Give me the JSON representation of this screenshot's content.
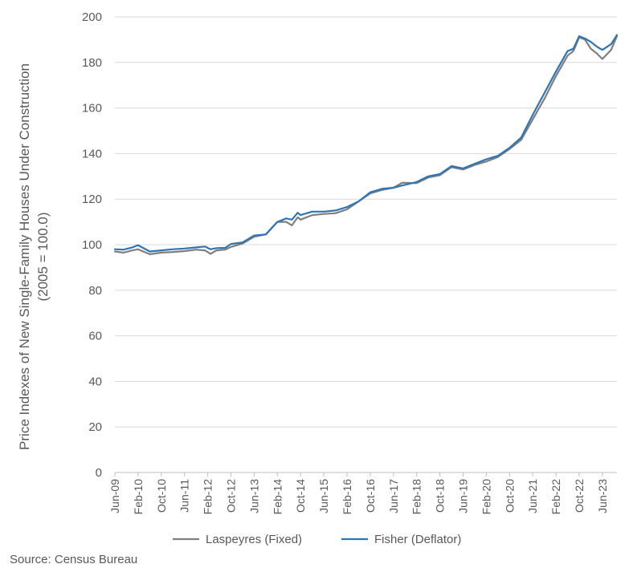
{
  "chart_data": {
    "type": "line",
    "title": "",
    "ylabel_line1": "Price Indexes of New Single-Family Houses Under Construction",
    "ylabel_line2": "(2005 = 100.0)",
    "xlabel": "",
    "ylim": [
      0,
      200
    ],
    "yticks": [
      0,
      20,
      40,
      60,
      80,
      100,
      120,
      140,
      160,
      180,
      200
    ],
    "grid": "horizontal",
    "legend_position": "bottom",
    "x_tick_labels": [
      "Jun-09",
      "Feb-10",
      "Oct-10",
      "Jun-11",
      "Feb-12",
      "Oct-12",
      "Jun-13",
      "Feb-14",
      "Oct-14",
      "Jun-15",
      "Feb-16",
      "Oct-16",
      "Jun-17",
      "Feb-18",
      "Oct-18",
      "Jun-19",
      "Feb-20",
      "Oct-20",
      "Jun-21",
      "Feb-22",
      "Oct-22",
      "Jun-23"
    ],
    "x_start": "Jun-09",
    "x_end": "Nov-23",
    "series": [
      {
        "name": "Laspeyres (Fixed)",
        "color": "#7f7f7f",
        "points": [
          [
            "Jun-09",
            97
          ],
          [
            "Sep-09",
            96.5
          ],
          [
            "Dec-09",
            97.5
          ],
          [
            "Feb-10",
            98
          ],
          [
            "Jun-10",
            95.8
          ],
          [
            "Oct-10",
            96.5
          ],
          [
            "Feb-11",
            96.8
          ],
          [
            "Jun-11",
            97.2
          ],
          [
            "Oct-11",
            97.8
          ],
          [
            "Jan-12",
            97.5
          ],
          [
            "Mar-12",
            96
          ],
          [
            "May-12",
            97.5
          ],
          [
            "Aug-12",
            97.8
          ],
          [
            "Oct-12",
            99
          ],
          [
            "Feb-13",
            100.5
          ],
          [
            "Jun-13",
            103.5
          ],
          [
            "Oct-13",
            104.5
          ],
          [
            "Feb-14",
            110
          ],
          [
            "May-14",
            110
          ],
          [
            "Jul-14",
            108.5
          ],
          [
            "Sep-14",
            112
          ],
          [
            "Oct-14",
            111
          ],
          [
            "Feb-15",
            113
          ],
          [
            "Jun-15",
            113.5
          ],
          [
            "Oct-15",
            113.8
          ],
          [
            "Feb-16",
            115.5
          ],
          [
            "Jun-16",
            119
          ],
          [
            "Oct-16",
            122.5
          ],
          [
            "Feb-17",
            124
          ],
          [
            "Jun-17",
            125
          ],
          [
            "Sep-17",
            127.2
          ],
          [
            "Feb-18",
            127
          ],
          [
            "Jun-18",
            129.5
          ],
          [
            "Oct-18",
            130.5
          ],
          [
            "Feb-19",
            134
          ],
          [
            "Jun-19",
            133
          ],
          [
            "Oct-19",
            135
          ],
          [
            "Feb-20",
            136.5
          ],
          [
            "Jun-20",
            138.5
          ],
          [
            "Oct-20",
            142
          ],
          [
            "Feb-21",
            146
          ],
          [
            "Jun-21",
            155
          ],
          [
            "Oct-21",
            164
          ],
          [
            "Feb-22",
            174
          ],
          [
            "Jun-22",
            183
          ],
          [
            "Aug-22",
            185
          ],
          [
            "Oct-22",
            191
          ],
          [
            "Dec-22",
            190
          ],
          [
            "Feb-23",
            186
          ],
          [
            "Apr-23",
            184
          ],
          [
            "Jun-23",
            181.5
          ],
          [
            "Sep-23",
            185.5
          ],
          [
            "Nov-23",
            191.5
          ]
        ]
      },
      {
        "name": "Fisher (Deflator)",
        "color": "#2e75b6",
        "points": [
          [
            "Jun-09",
            98
          ],
          [
            "Sep-09",
            97.8
          ],
          [
            "Dec-09",
            98.8
          ],
          [
            "Feb-10",
            99.8
          ],
          [
            "Jun-10",
            97
          ],
          [
            "Oct-10",
            97.5
          ],
          [
            "Feb-11",
            98
          ],
          [
            "Jun-11",
            98.3
          ],
          [
            "Oct-11",
            98.8
          ],
          [
            "Jan-12",
            99.2
          ],
          [
            "Mar-12",
            98
          ],
          [
            "May-12",
            98.5
          ],
          [
            "Aug-12",
            98.6
          ],
          [
            "Oct-12",
            100.3
          ],
          [
            "Feb-13",
            101
          ],
          [
            "Jun-13",
            104
          ],
          [
            "Oct-13",
            104.5
          ],
          [
            "Feb-14",
            110
          ],
          [
            "May-14",
            111.5
          ],
          [
            "Jul-14",
            111
          ],
          [
            "Sep-14",
            114
          ],
          [
            "Oct-14",
            113
          ],
          [
            "Feb-15",
            114.5
          ],
          [
            "Jun-15",
            114.5
          ],
          [
            "Oct-15",
            115
          ],
          [
            "Feb-16",
            116.5
          ],
          [
            "Jun-16",
            119
          ],
          [
            "Oct-16",
            123
          ],
          [
            "Feb-17",
            124.5
          ],
          [
            "Jun-17",
            125
          ],
          [
            "Sep-17",
            126
          ],
          [
            "Feb-18",
            127.5
          ],
          [
            "Jun-18",
            130
          ],
          [
            "Oct-18",
            131
          ],
          [
            "Feb-19",
            134.5
          ],
          [
            "Jun-19",
            133.5
          ],
          [
            "Oct-19",
            135.5
          ],
          [
            "Feb-20",
            137.5
          ],
          [
            "Jun-20",
            139
          ],
          [
            "Oct-20",
            142.5
          ],
          [
            "Feb-21",
            147
          ],
          [
            "Jun-21",
            157
          ],
          [
            "Oct-21",
            166.5
          ],
          [
            "Feb-22",
            176
          ],
          [
            "Jun-22",
            185
          ],
          [
            "Aug-22",
            186
          ],
          [
            "Oct-22",
            191.5
          ],
          [
            "Dec-22",
            190.5
          ],
          [
            "Feb-23",
            189
          ],
          [
            "Apr-23",
            187
          ],
          [
            "Jun-23",
            185.5
          ],
          [
            "Sep-23",
            188
          ],
          [
            "Nov-23",
            192
          ]
        ]
      }
    ]
  },
  "source_text": "Source: Census Bureau"
}
